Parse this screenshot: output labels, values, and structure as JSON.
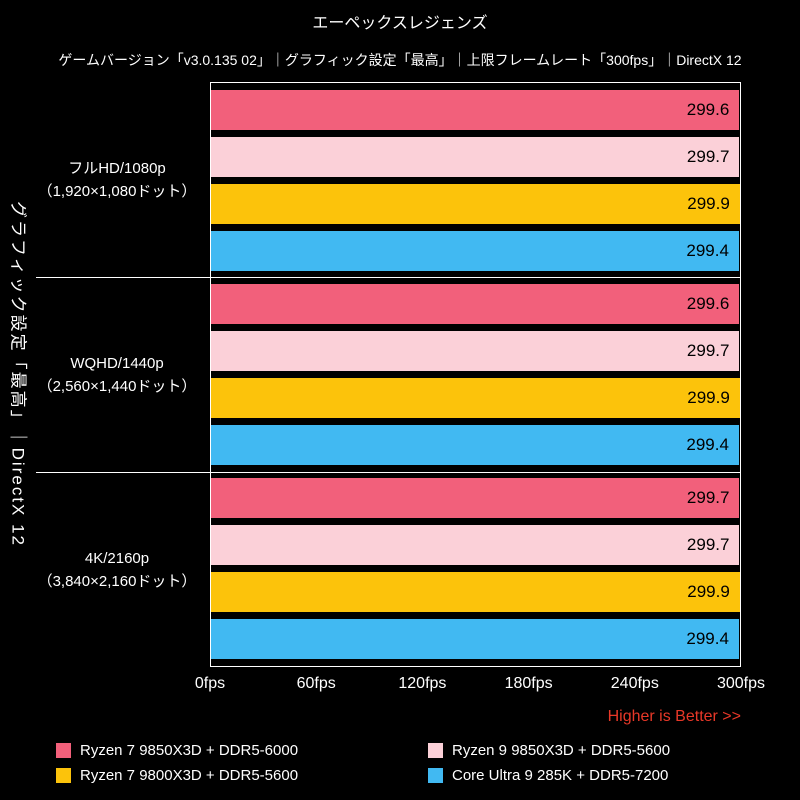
{
  "title": "エーペックスレジェンズ",
  "subtitle": "ゲームバージョン「v3.0.135 02」｜グラフィック設定「最高」｜上限フレームレート「300fps」｜DirectX 12",
  "side_label": "グラフィック設定「最高」｜DirectX 12",
  "footer_note": "Higher is Better >>",
  "colors": {
    "background": "#000000",
    "text": "#ffffff",
    "note": "#e83828",
    "bar_value_text": "#000000",
    "separator": "#ffffff"
  },
  "chart_data": {
    "type": "bar",
    "orientation": "horizontal",
    "title": "エーペックスレジェンズ",
    "x_ticks": [
      "0fps",
      "60fps",
      "120fps",
      "180fps",
      "240fps",
      "300fps"
    ],
    "x_min": 0,
    "x_max": 300,
    "grid": false,
    "legend_position": "bottom",
    "higher_is_better": true,
    "categories": [
      [
        "フルHD/1080p",
        "（1,920×1,080ドット）"
      ],
      [
        "WQHD/1440p",
        "（2,560×1,440ドット）"
      ],
      [
        "4K/2160p",
        "（3,840×2,160ドット）"
      ]
    ],
    "series": [
      {
        "name": "Ryzen 7 9850X3D + DDR5-6000",
        "color": "#f2607b",
        "values": [
          299.6,
          299.6,
          299.7
        ]
      },
      {
        "name": "Ryzen 9 9850X3D + DDR5-5600",
        "color": "#fbd0d8",
        "values": [
          299.7,
          299.7,
          299.7
        ]
      },
      {
        "name": "Ryzen 7 9800X3D + DDR5-5600",
        "color": "#fcc30b",
        "values": [
          299.9,
          299.9,
          299.9
        ]
      },
      {
        "name": "Core Ultra 9 285K + DDR5-7200",
        "color": "#41b9f2",
        "values": [
          299.4,
          299.4,
          299.4
        ]
      }
    ]
  }
}
